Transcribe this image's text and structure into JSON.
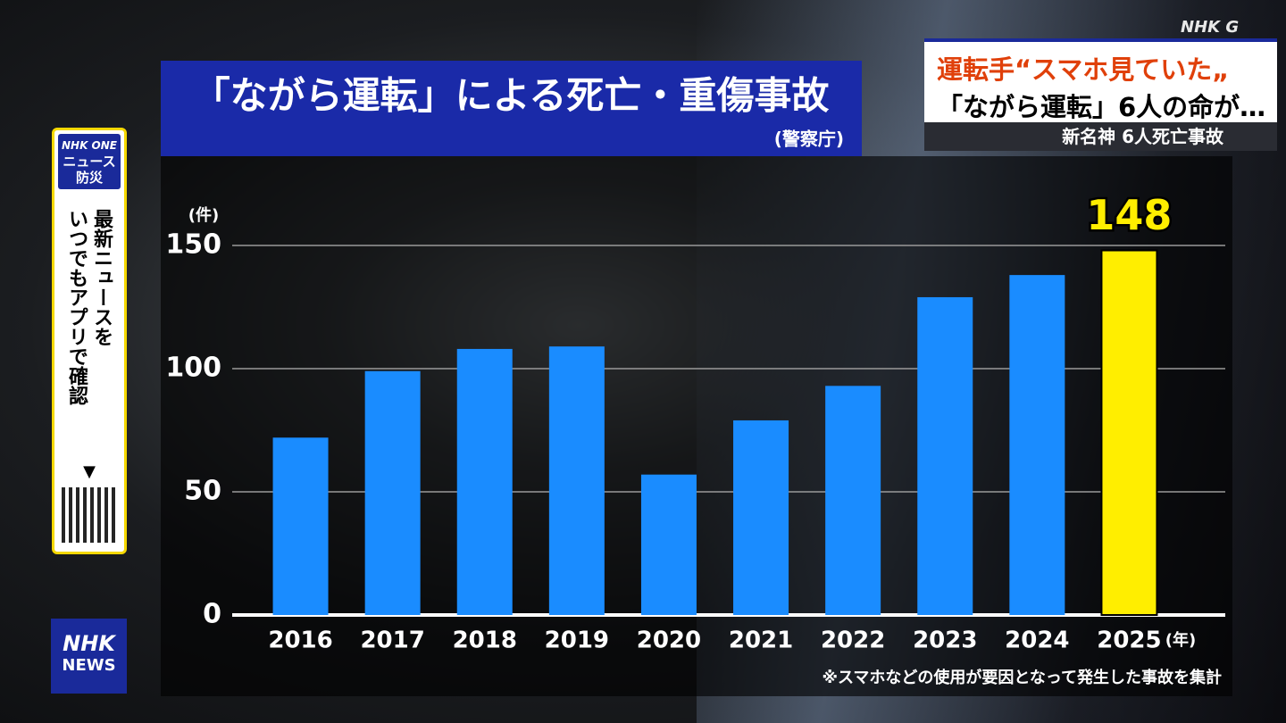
{
  "channel_logo": "NHK G",
  "headline": {
    "line1": "運転手“スマホ見ていた„",
    "line2": "「ながら運転」6人の命が…",
    "caption": "新名神 6人死亡事故"
  },
  "sidebar": {
    "brand": "NHK ONE",
    "title": [
      "ニュース",
      "防災"
    ],
    "message": [
      "最新ニュースを",
      "いつでもアプリで確認"
    ],
    "arrow": "▼"
  },
  "news_logo": {
    "line1": "NHK",
    "line2": "NEWS"
  },
  "chart_data": {
    "type": "bar",
    "title": "「ながら運転」による死亡・重傷事故",
    "source": "(警察庁)",
    "y_unit": "(件)",
    "x_unit": "(年)",
    "note": "※スマホなどの使用が要因となって発生した事故を集計",
    "categories": [
      "2016",
      "2017",
      "2018",
      "2019",
      "2020",
      "2021",
      "2022",
      "2023",
      "2024",
      "2025"
    ],
    "values": [
      72,
      99,
      108,
      109,
      57,
      79,
      93,
      129,
      138,
      148
    ],
    "color": "#1a8cff",
    "highlight_index": 9,
    "highlight_color": "#ffee00",
    "ylim": [
      0,
      150
    ],
    "yticks": [
      0,
      50,
      100,
      150
    ],
    "grid": true
  }
}
